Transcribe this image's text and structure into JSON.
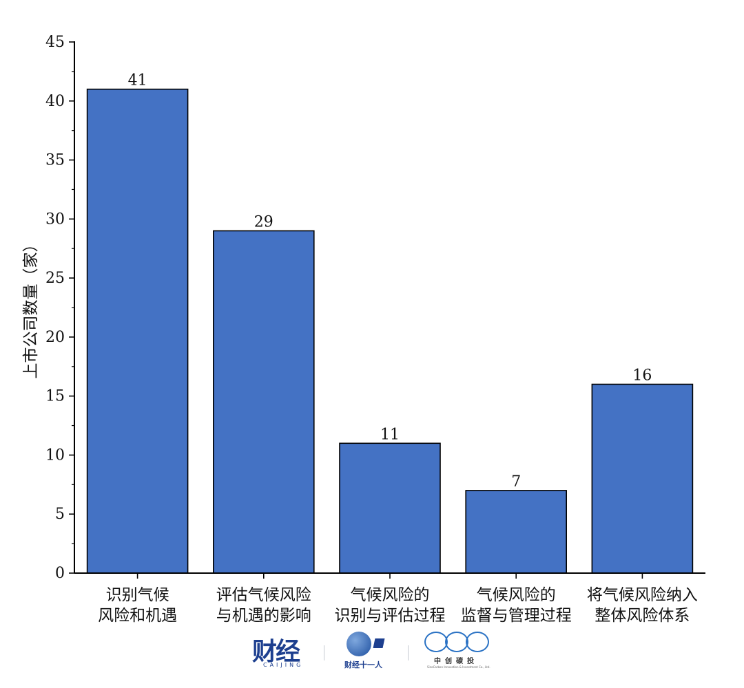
{
  "chart_data": {
    "type": "bar",
    "categories": [
      [
        "识别气候",
        "风险和机遇"
      ],
      [
        "评估气候风险",
        "与机遇的影响"
      ],
      [
        "气候风险的",
        "识别与评估过程"
      ],
      [
        "气候风险的",
        "监督与管理过程"
      ],
      [
        "将气候风险纳入",
        "整体风险体系"
      ]
    ],
    "values": [
      41,
      29,
      11,
      7,
      16
    ],
    "data_labels": [
      "41",
      "29",
      "11",
      "7",
      "16"
    ],
    "ylabel": "上市公司数量（家）",
    "ylim": [
      0,
      45
    ],
    "yticks": [
      0,
      5,
      10,
      15,
      20,
      25,
      30,
      35,
      40,
      45
    ],
    "bar_color": "#4472c4",
    "grid": false,
    "legend": "none"
  },
  "logos": {
    "caijing": "财经",
    "caijing_sub": "CAIJING",
    "eleven": "财经十一人",
    "zhongchuang": "中创碳投",
    "zhongchuang_sub": "SinoCarbon Innovation & Investment Co., Ltd."
  }
}
